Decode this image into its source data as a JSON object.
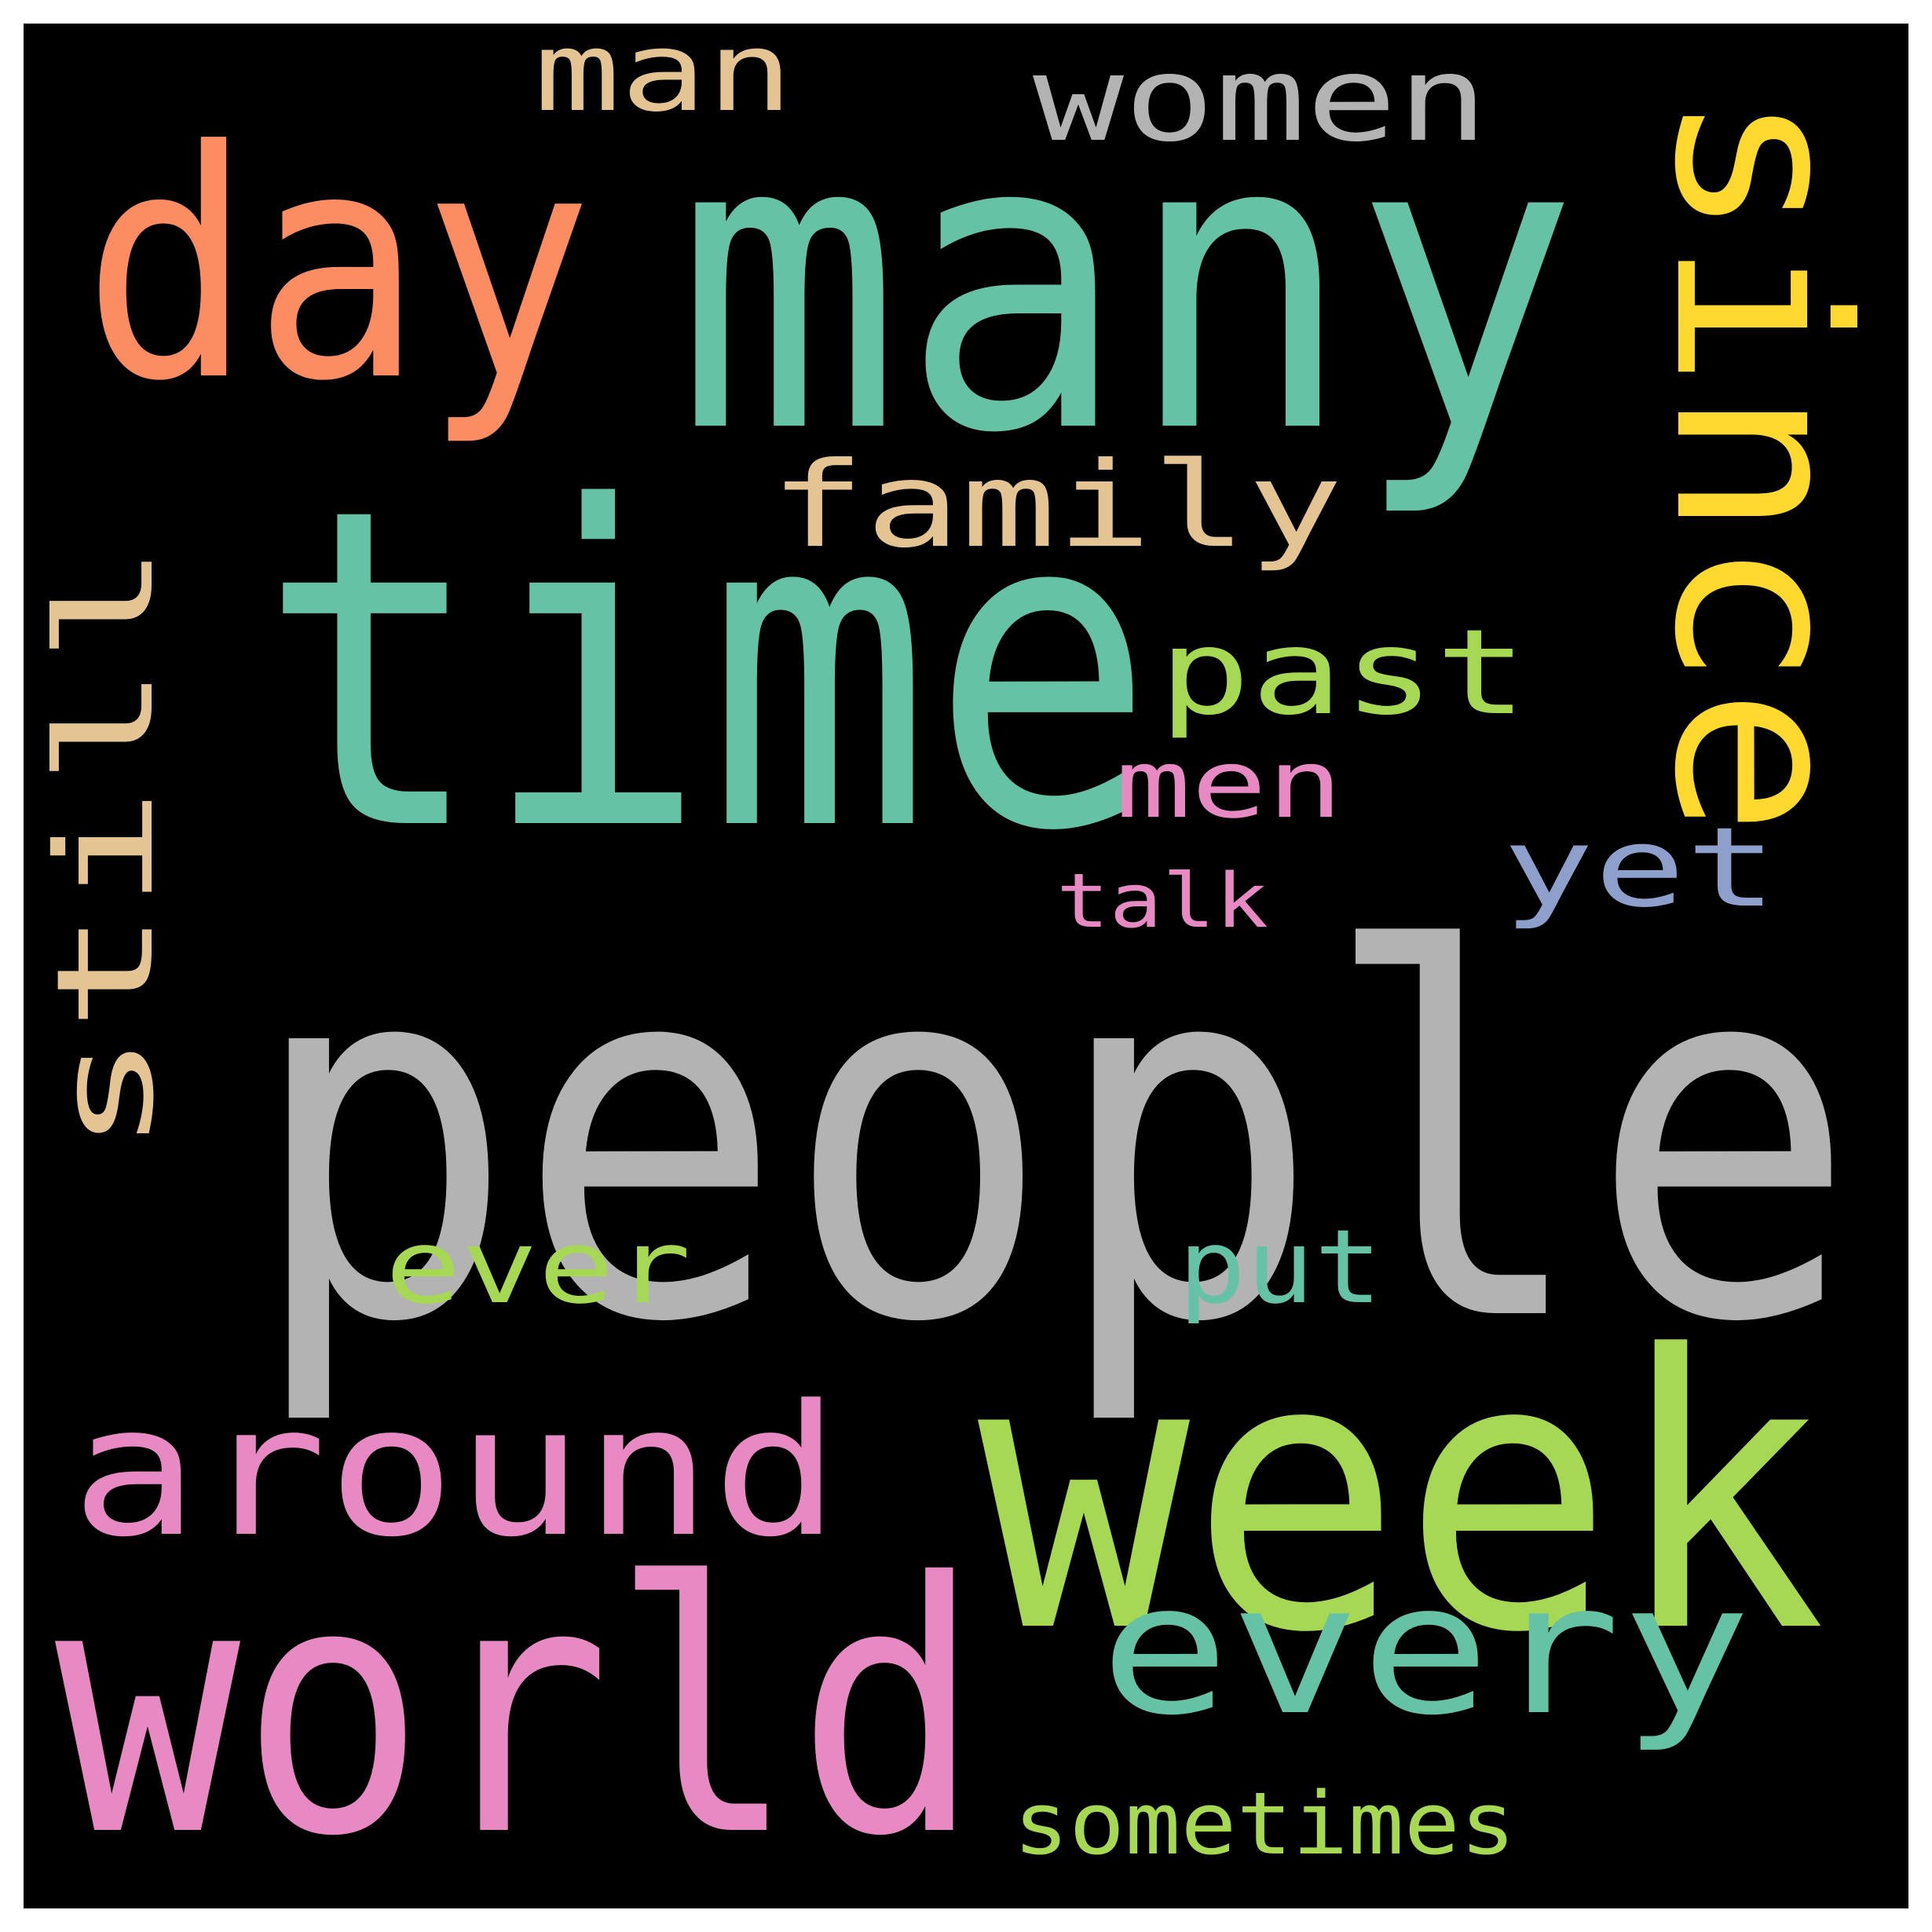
{
  "words": [
    {
      "text": "people",
      "color": "#b3b3b3"
    },
    {
      "text": "time",
      "color": "#66c2a5"
    },
    {
      "text": "many",
      "color": "#66c2a5"
    },
    {
      "text": "week",
      "color": "#a6d854"
    },
    {
      "text": "world",
      "color": "#e78ac3"
    },
    {
      "text": "day",
      "color": "#fc8d62"
    },
    {
      "text": "since",
      "color": "#ffd92f"
    },
    {
      "text": "around",
      "color": "#e78ac3"
    },
    {
      "text": "every",
      "color": "#66c2a5"
    },
    {
      "text": "still",
      "color": "#e5c494"
    },
    {
      "text": "family",
      "color": "#e5c494"
    },
    {
      "text": "women",
      "color": "#b3b3b3"
    },
    {
      "text": "past",
      "color": "#a6d854"
    },
    {
      "text": "man",
      "color": "#e5c494"
    },
    {
      "text": "yet",
      "color": "#8da0cb"
    },
    {
      "text": "ever",
      "color": "#a6d854"
    },
    {
      "text": "put",
      "color": "#66c2a5"
    },
    {
      "text": "men",
      "color": "#e78ac3"
    },
    {
      "text": "sometimes",
      "color": "#a6d854"
    },
    {
      "text": "talk",
      "color": "#e78ac3"
    }
  ]
}
